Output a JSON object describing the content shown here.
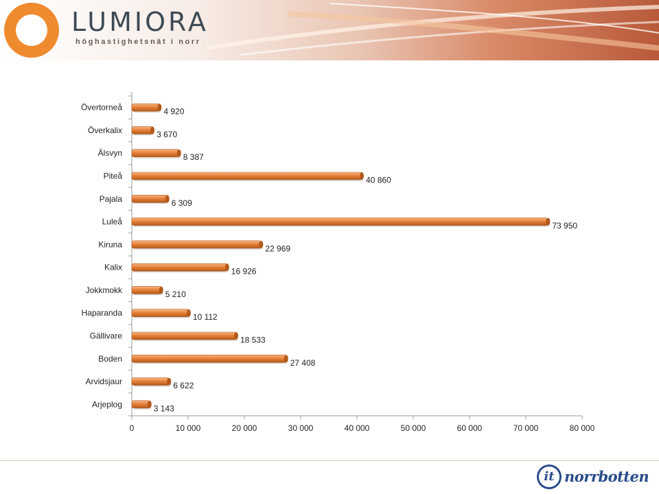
{
  "header": {
    "brand_name": "LUMIORA",
    "brand_tagline": "höghastighetsnät i norr"
  },
  "footer": {
    "logo_badge": "it",
    "logo_name": "norrbotten"
  },
  "colors": {
    "bar_fill": "#e8813a",
    "bar_highlight": "#f6b98a",
    "bar_shadow": "#b35a1c",
    "axis": "#9a9a9a"
  },
  "chart_data": {
    "type": "bar",
    "orientation": "horizontal",
    "categories": [
      "Övertorneå",
      "Överkalix",
      "Älsvyn",
      "Piteå",
      "Pajala",
      "Luleå",
      "Kiruna",
      "Kalix",
      "Jokkmokk",
      "Haparanda",
      "Gällivare",
      "Boden",
      "Arvidsjaur",
      "Arjeplog"
    ],
    "values": [
      4920,
      3670,
      8387,
      40860,
      6309,
      73950,
      22969,
      16926,
      5210,
      10112,
      18533,
      27408,
      6622,
      3143
    ],
    "value_labels": [
      "4 920",
      "3 670",
      "8 387",
      "40 860",
      "6 309",
      "73 950",
      "22 969",
      "16 926",
      "5 210",
      "10 112",
      "18 533",
      "27 408",
      "6 622",
      "3 143"
    ],
    "xlim": [
      0,
      80000
    ],
    "x_ticks": [
      0,
      10000,
      20000,
      30000,
      40000,
      50000,
      60000,
      70000,
      80000
    ],
    "x_tick_labels": [
      "0",
      "10 000",
      "20 000",
      "30 000",
      "40 000",
      "50 000",
      "60 000",
      "70 000",
      "80 000"
    ],
    "grid": false,
    "legend": "none",
    "title": "",
    "xlabel": "",
    "ylabel": ""
  }
}
